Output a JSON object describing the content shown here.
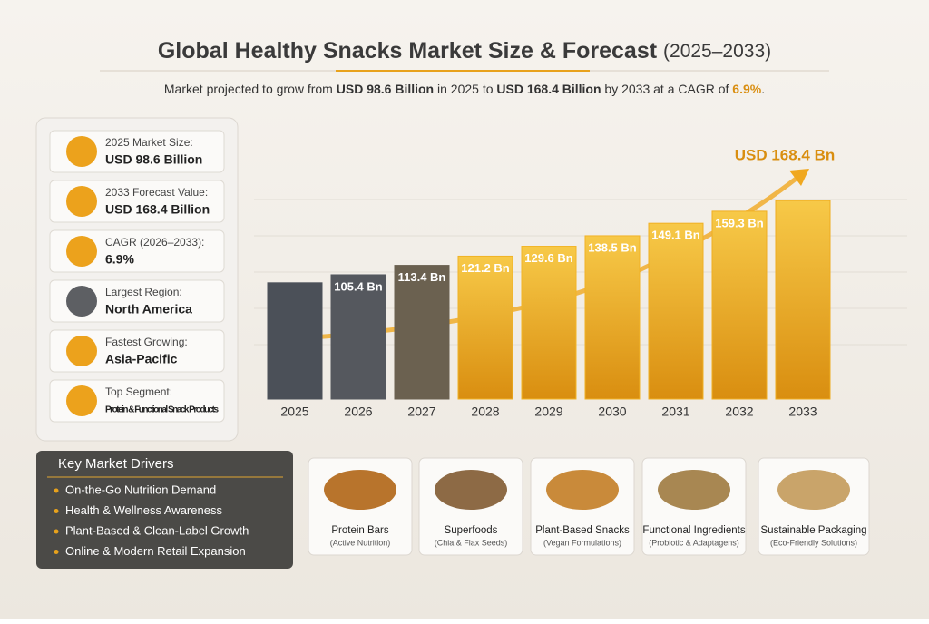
{
  "title": "Global Healthy Snacks Market Size & Forecast",
  "title_years": "(2025–2033)",
  "subtitle": [
    "Market projected to grow from ",
    "USD 98.6 Billion",
    " in 2025 to ",
    "USD 168.4 Billion",
    " by 2033 at a CAGR of ",
    "6.9%",
    "."
  ],
  "stats": [
    {
      "label": "2025 Market Size:",
      "value": "USD 98.6 Billion"
    },
    {
      "label": "2033 Forecast Value:",
      "value": "USD 168.4 Billion"
    },
    {
      "label": "CAGR (2026–2033):",
      "value": "6.9%"
    },
    {
      "label": "Largest Region:",
      "value": "North America"
    },
    {
      "label": "Fastest Growing:",
      "value": "Asia-Pacific"
    },
    {
      "label": "Top Segment:",
      "value": "Protein & Functional Snack Products"
    }
  ],
  "drivers": {
    "title": "Key Market Drivers",
    "items": [
      "On-the-Go Nutrition Demand",
      "Health & Wellness Awareness",
      "Plant-Based & Clean-Label Growth",
      "Online & Modern Retail Expansion"
    ]
  },
  "segments": [
    {
      "name": "Protein Bars",
      "detail": "(Active Nutrition)"
    },
    {
      "name": "Superfoods",
      "detail": "(Chia & Flax Seeds)"
    },
    {
      "name": "Plant-Based Snacks",
      "detail": "(Vegan Formulations)"
    },
    {
      "name": "Functional Ingredients",
      "detail": "(Probiotic & Adaptagens)"
    },
    {
      "name": "Sustainable Packaging",
      "detail": "(Eco-Friendly Solutions)"
    }
  ],
  "chart_data": {
    "type": "bar",
    "categories": [
      "2025",
      "2026",
      "2027",
      "2028",
      "2029",
      "2030",
      "2031",
      "2032",
      "2033"
    ],
    "values": [
      98.6,
      105.4,
      113.4,
      121.2,
      129.6,
      138.5,
      149.1,
      159.3,
      168.4
    ],
    "value_labels": [
      null,
      "105.4 Bn",
      "113.4 Bn",
      "121.2 Bn",
      "129.6 Bn",
      "138.5 Bn",
      "149.1 Bn",
      "159.3 Bn",
      "USD 168.4 Bn"
    ],
    "colors": [
      "#4b5058",
      "#55585e",
      "#6b6150",
      "#f0b224",
      "#f2b526",
      "#f1b225",
      "#f0b023",
      "#efae22",
      "#eeac20"
    ]
  }
}
